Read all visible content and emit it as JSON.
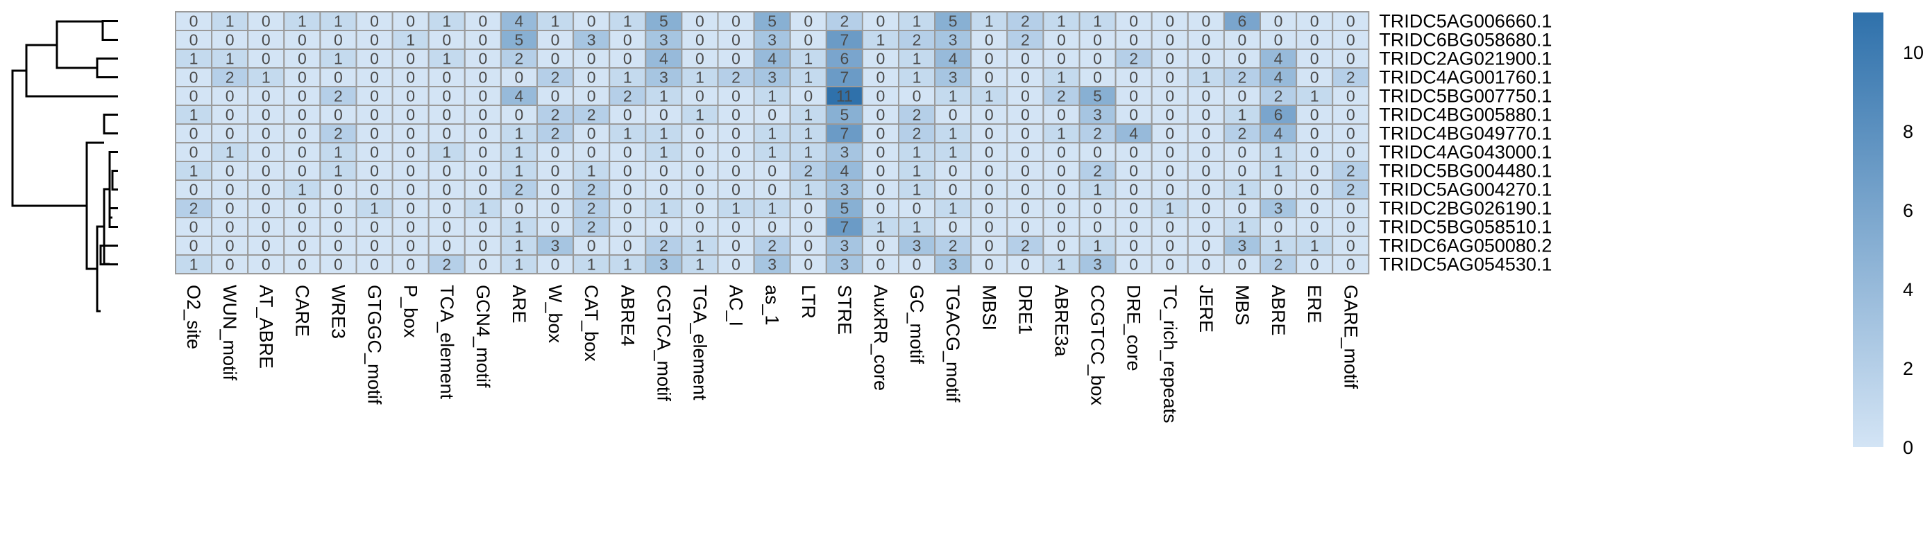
{
  "chart_data": {
    "type": "heatmap",
    "rows": [
      "TRIDC5AG006660.1",
      "TRIDC6BG058680.1",
      "TRIDC2AG021900.1",
      "TRIDC4AG001760.1",
      "TRIDC5BG007750.1",
      "TRIDC4BG005880.1",
      "TRIDC4BG049770.1",
      "TRIDC4AG043000.1",
      "TRIDC5BG004480.1",
      "TRIDC5AG004270.1",
      "TRIDC2BG026190.1",
      "TRIDC5BG058510.1",
      "TRIDC6AG050080.2",
      "TRIDC5AG054530.1"
    ],
    "columns": [
      "O2_site",
      "WUN_motif",
      "AT_ABRE",
      "CARE",
      "WRE3",
      "GTGGC_motif",
      "P_box",
      "TCA_element",
      "GCN4_motif",
      "ARE",
      "W_box",
      "CAT_box",
      "ABRE4",
      "CGTCA_motif",
      "TGA_element",
      "AC_I",
      "as_1",
      "LTR",
      "STRE",
      "AuxRR_core",
      "GC_motif",
      "TGACG_motif",
      "MBSI",
      "DRE1",
      "ABRE3a",
      "CCGTCC_box",
      "DRE_core",
      "TC_rich_repeats",
      "JERE",
      "MBS",
      "ABRE",
      "ERE",
      "GARE_motif"
    ],
    "values": [
      [
        0,
        1,
        0,
        1,
        1,
        0,
        0,
        1,
        0,
        4,
        1,
        0,
        1,
        5,
        0,
        0,
        5,
        0,
        2,
        0,
        1,
        5,
        1,
        2,
        1,
        1,
        0,
        0,
        0,
        6,
        0,
        0,
        0
      ],
      [
        0,
        0,
        0,
        0,
        0,
        0,
        1,
        0,
        0,
        5,
        0,
        3,
        0,
        3,
        0,
        0,
        3,
        0,
        7,
        1,
        2,
        3,
        0,
        2,
        0,
        0,
        0,
        0,
        0,
        0,
        0,
        0,
        0
      ],
      [
        1,
        1,
        0,
        0,
        1,
        0,
        0,
        1,
        0,
        2,
        0,
        0,
        0,
        4,
        0,
        0,
        4,
        1,
        6,
        0,
        1,
        4,
        0,
        0,
        0,
        0,
        2,
        0,
        0,
        0,
        4,
        0,
        0
      ],
      [
        0,
        2,
        1,
        0,
        0,
        0,
        0,
        0,
        0,
        0,
        2,
        0,
        1,
        3,
        1,
        2,
        3,
        1,
        7,
        0,
        1,
        3,
        0,
        0,
        1,
        0,
        0,
        0,
        1,
        2,
        4,
        0,
        2
      ],
      [
        0,
        0,
        0,
        0,
        2,
        0,
        0,
        0,
        0,
        4,
        0,
        0,
        2,
        1,
        0,
        0,
        1,
        0,
        11,
        0,
        0,
        1,
        1,
        0,
        2,
        5,
        0,
        0,
        0,
        0,
        2,
        1,
        0
      ],
      [
        1,
        0,
        0,
        0,
        0,
        0,
        0,
        0,
        0,
        0,
        2,
        2,
        0,
        0,
        1,
        0,
        0,
        1,
        5,
        0,
        2,
        0,
        0,
        0,
        0,
        3,
        0,
        0,
        0,
        1,
        6,
        0,
        0
      ],
      [
        0,
        0,
        0,
        0,
        2,
        0,
        0,
        0,
        0,
        1,
        2,
        0,
        1,
        1,
        0,
        0,
        1,
        1,
        7,
        0,
        2,
        1,
        0,
        0,
        1,
        2,
        4,
        0,
        0,
        2,
        4,
        0,
        0
      ],
      [
        0,
        1,
        0,
        0,
        1,
        0,
        0,
        1,
        0,
        1,
        0,
        0,
        0,
        1,
        0,
        0,
        1,
        1,
        3,
        0,
        1,
        1,
        0,
        0,
        0,
        0,
        0,
        0,
        0,
        0,
        1,
        0,
        0
      ],
      [
        1,
        0,
        0,
        0,
        1,
        0,
        0,
        0,
        0,
        1,
        0,
        1,
        0,
        0,
        0,
        0,
        0,
        2,
        4,
        0,
        1,
        0,
        0,
        0,
        0,
        2,
        0,
        0,
        0,
        0,
        1,
        0,
        2
      ],
      [
        0,
        0,
        0,
        1,
        0,
        0,
        0,
        0,
        0,
        2,
        0,
        2,
        0,
        0,
        0,
        0,
        0,
        1,
        3,
        0,
        1,
        0,
        0,
        0,
        0,
        1,
        0,
        0,
        0,
        1,
        0,
        0,
        2
      ],
      [
        2,
        0,
        0,
        0,
        0,
        1,
        0,
        0,
        1,
        0,
        0,
        2,
        0,
        1,
        0,
        1,
        1,
        0,
        5,
        0,
        0,
        1,
        0,
        0,
        0,
        0,
        0,
        1,
        0,
        0,
        3,
        0,
        0
      ],
      [
        0,
        0,
        0,
        0,
        0,
        0,
        0,
        0,
        0,
        1,
        0,
        2,
        0,
        0,
        0,
        0,
        0,
        0,
        7,
        1,
        1,
        0,
        0,
        0,
        0,
        0,
        0,
        0,
        0,
        1,
        0,
        0,
        0
      ],
      [
        0,
        0,
        0,
        0,
        0,
        0,
        0,
        0,
        0,
        1,
        3,
        0,
        0,
        2,
        1,
        0,
        2,
        0,
        3,
        0,
        3,
        2,
        0,
        2,
        0,
        1,
        0,
        0,
        0,
        3,
        1,
        1,
        0
      ],
      [
        1,
        0,
        0,
        0,
        0,
        0,
        0,
        2,
        0,
        1,
        0,
        1,
        1,
        3,
        1,
        0,
        3,
        0,
        3,
        0,
        0,
        3,
        0,
        0,
        1,
        3,
        0,
        0,
        0,
        0,
        2,
        0,
        0
      ]
    ],
    "colorbar": {
      "min": 0,
      "max": 11,
      "ticks": [
        0,
        2,
        4,
        6,
        8,
        10
      ],
      "color_low": "#d3e4f5",
      "color_high": "#2f71ab"
    },
    "cell_border_color": "#9a9a9a"
  }
}
